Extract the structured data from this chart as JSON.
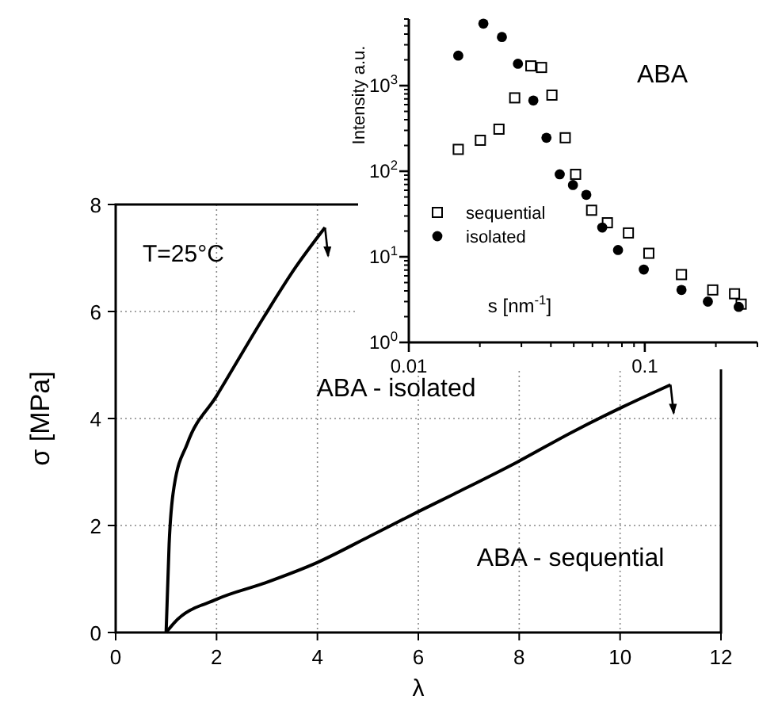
{
  "chart_data": [
    {
      "type": "line",
      "xlabel": "λ",
      "ylabel": "σ [MPa]",
      "xlim": [
        0,
        12
      ],
      "ylim": [
        0,
        8
      ],
      "xticks": [
        0,
        2,
        4,
        6,
        8,
        10,
        12
      ],
      "yticks": [
        0,
        2,
        4,
        6,
        8
      ],
      "grid": true,
      "marker": "none",
      "line_style": "solid",
      "annotations": [
        "T=25°C"
      ],
      "series": [
        {
          "name": "ABA - isolated",
          "color": "#000000",
          "x": [
            1.0,
            1.06,
            1.16,
            1.42,
            2.0,
            2.94,
            3.57,
            4.15
          ],
          "values": [
            0,
            1.66,
            2.74,
            3.53,
            4.42,
            5.9,
            6.83,
            7.57
          ]
        },
        {
          "name": "ABA - sequential",
          "color": "#000000",
          "x": [
            1.0,
            1.16,
            2.0,
            2.94,
            4.0,
            5.04,
            5.98,
            6.71,
            7.97,
            9.02,
            10.06,
            11.0
          ],
          "values": [
            0,
            0.18,
            0.62,
            0.92,
            1.31,
            1.8,
            2.25,
            2.59,
            3.19,
            3.73,
            4.22,
            4.63
          ]
        }
      ]
    },
    {
      "type": "scatter",
      "title": "ABA",
      "xlabel": "s [nm$^{-1}$]",
      "ylabel": "Intensity a.u.",
      "log": "xy",
      "xlim": [
        0.01,
        0.3
      ],
      "ylim": [
        1,
        6000
      ],
      "xticks": [
        0.01,
        0.1
      ],
      "yticks": [
        {
          "value": 1,
          "label": "10$^{0}$"
        },
        {
          "value": 10,
          "label": "10$^{1}$"
        },
        {
          "value": 100,
          "label": "10$^{2}$"
        },
        {
          "value": 1000,
          "label": "10$^{3}$"
        }
      ],
      "grid": false,
      "legend": "left",
      "series": [
        {
          "name": "sequential",
          "color": "#000000",
          "marker": "square",
          "x": [
            0.0162,
            0.0201,
            0.0241,
            0.0281,
            0.0329,
            0.0365,
            0.0404,
            0.046,
            0.0509,
            0.0595,
            0.0694,
            0.0852,
            0.104,
            0.143,
            0.194,
            0.24,
            0.256
          ],
          "values": [
            180,
            230,
            310,
            720,
            1700,
            1630,
            775,
            246,
            92,
            35,
            25,
            19,
            11,
            6.2,
            4.1,
            3.7,
            2.8
          ]
        },
        {
          "name": "isolated",
          "color": "#000000",
          "marker": "circle",
          "x": [
            0.0162,
            0.0207,
            0.0248,
            0.029,
            0.0337,
            0.0383,
            0.0436,
            0.0496,
            0.0565,
            0.066,
            0.077,
            0.099,
            0.143,
            0.185,
            0.25
          ],
          "values": [
            2240,
            5300,
            3700,
            1800,
            670,
            246,
            92,
            69,
            53,
            22,
            12,
            7.1,
            4.1,
            3.0,
            2.6
          ]
        }
      ]
    }
  ]
}
